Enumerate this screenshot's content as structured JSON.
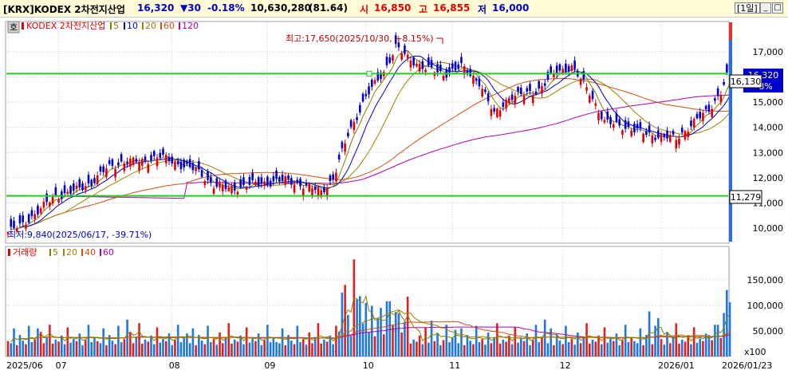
{
  "header": {
    "symbol": "[KRX]KODEX 2차전지산업",
    "price": "16,320",
    "change": "▼30",
    "change_pct": "-0.18%",
    "volume": "10,630,280",
    "turnover": "(81.64)",
    "open_label": "시",
    "open": "16,850",
    "high_label": "고",
    "high": "16,855",
    "low_label": "저",
    "low": "16,000",
    "period": "[1일]",
    "btn_min": "_",
    "btn_max": "□",
    "btn_close": "×",
    "colors": {
      "up": "#e00000",
      "down": "#0000cc",
      "bg": "#fffbd6"
    }
  },
  "side_button": "호",
  "price_legend": {
    "name": "KODEX 2차전지산업",
    "ma": [
      "5",
      "10",
      "20",
      "60",
      "120"
    ]
  },
  "volume_legend": {
    "name": "거래량",
    "ma": [
      "5",
      "20",
      "40",
      "60"
    ]
  },
  "annotations": {
    "high": "최고:17,650(2025/10/30, +8.15%)",
    "low": "최저:9,840(2025/06/17, -39.71%)",
    "price_box_current": "16,320",
    "price_box_cross": "16,130",
    "price_box_pct": "8%",
    "price_box_low_line": "11,279"
  },
  "chart_data": [
    {
      "type": "candlestick",
      "title": "KODEX 2차전지산업",
      "x_ticks": [
        "2025/06",
        "07",
        "08",
        "09",
        "10",
        "11",
        "12",
        "2026/01",
        "2026/01/23"
      ],
      "y_ticks": [
        10000,
        11000,
        12000,
        13000,
        14000,
        15000,
        16000,
        17000
      ],
      "y_tick_labels": [
        "10,000",
        "11,000",
        "12,000",
        "13,000",
        "14,000",
        "15,000",
        "16,000",
        "17,000"
      ],
      "ylim": [
        9400,
        18200
      ],
      "horizontal_lines": [
        16130,
        11279
      ],
      "anchors": [
        [
          0,
          9840
        ],
        [
          5,
          10150
        ],
        [
          10,
          10650
        ],
        [
          15,
          11200
        ],
        [
          22,
          11450
        ],
        [
          28,
          11800
        ],
        [
          33,
          12350
        ],
        [
          39,
          12650
        ],
        [
          45,
          12650
        ],
        [
          51,
          12850
        ],
        [
          57,
          12550
        ],
        [
          63,
          12300
        ],
        [
          69,
          11700
        ],
        [
          75,
          11550
        ],
        [
          81,
          11720
        ],
        [
          87,
          11800
        ],
        [
          93,
          11900
        ],
        [
          99,
          11700
        ],
        [
          105,
          11450
        ],
        [
          109,
          11950
        ],
        [
          114,
          13700
        ],
        [
          120,
          15200
        ],
        [
          126,
          16200
        ],
        [
          130,
          17200
        ],
        [
          134,
          16750
        ],
        [
          140,
          16350
        ],
        [
          146,
          16100
        ],
        [
          152,
          16400
        ],
        [
          158,
          15800
        ],
        [
          163,
          14500
        ],
        [
          168,
          15200
        ],
        [
          173,
          15300
        ],
        [
          178,
          15500
        ],
        [
          184,
          16200
        ],
        [
          189,
          16400
        ],
        [
          195,
          15400
        ],
        [
          200,
          14200
        ],
        [
          206,
          14050
        ],
        [
          212,
          13800
        ],
        [
          218,
          13650
        ],
        [
          224,
          13550
        ],
        [
          230,
          14200
        ],
        [
          235,
          14700
        ],
        [
          239,
          15400
        ],
        [
          242,
          16320
        ]
      ],
      "series": [
        {
          "name": "5"
        },
        {
          "name": "10"
        },
        {
          "name": "20"
        },
        {
          "name": "60"
        },
        {
          "name": "120"
        }
      ]
    },
    {
      "type": "bar",
      "title": "거래량",
      "unit": "x100",
      "y_ticks": [
        50000,
        100000,
        150000
      ],
      "y_tick_labels": [
        "50,000",
        "100,000",
        "150,000"
      ],
      "ylim": [
        0,
        195000
      ],
      "pattern_values": [
        30000,
        26000,
        55000,
        22000,
        42000,
        31000,
        24000,
        60000,
        28000,
        34000,
        23000,
        47000,
        26000,
        38000,
        65000,
        25000,
        33000,
        29000,
        41000,
        24000,
        57000,
        27000,
        35000,
        30000,
        45000,
        22000,
        32000,
        62000,
        28000,
        36000
      ],
      "notable_values": {
        "10": 55000,
        "11": 48000,
        "14": 62000,
        "40": 72000,
        "60": 45000,
        "90": 28000,
        "110": 60000,
        "112": 125000,
        "113": 140000,
        "116": 190000,
        "118": 118000,
        "120": 105000,
        "125": 95000,
        "128": 108000,
        "130": 87000,
        "142": 70000,
        "150": 52000,
        "180": 72000,
        "215": 88000,
        "218": 75000,
        "235": 42000,
        "238": 62000,
        "240": 85000,
        "241": 130000,
        "242": 106000
      },
      "series": [
        {
          "name": "5"
        },
        {
          "name": "20"
        },
        {
          "name": "40"
        },
        {
          "name": "60"
        }
      ]
    }
  ]
}
